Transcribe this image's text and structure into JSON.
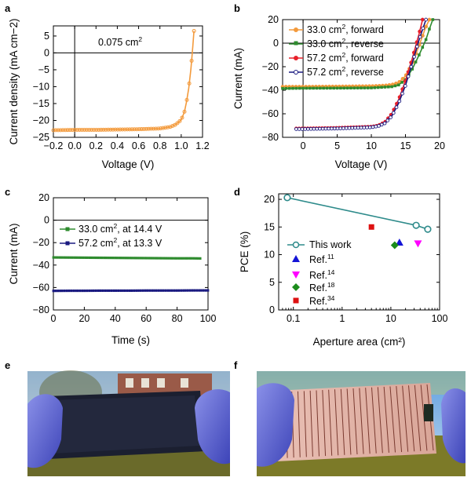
{
  "panels": {
    "a": {
      "letter": "a"
    },
    "b": {
      "letter": "b"
    },
    "c": {
      "letter": "c"
    },
    "d": {
      "letter": "d"
    },
    "e": {
      "letter": "e"
    },
    "f": {
      "letter": "f"
    }
  },
  "colors": {
    "orange": "#F39A3C",
    "green": "#2E8B2E",
    "red": "#E8202A",
    "navy": "#1A1A80",
    "teal": "#2E8B8B",
    "blue": "#1414D6",
    "magenta": "#FF00FF",
    "darkgreen": "#1C8C1C",
    "refred": "#DD1111"
  },
  "chart_data": [
    {
      "id": "a",
      "type": "line",
      "xlabel": "Voltage (V)",
      "ylabel": "Current density (mA cm−2)",
      "xlim": [
        -0.2,
        1.2
      ],
      "ylim": [
        -25,
        8
      ],
      "xticks": [
        "−0.2",
        "0.0",
        "0.2",
        "0.4",
        "0.6",
        "0.8",
        "1.0",
        "1.2"
      ],
      "yticks": [
        "−25",
        "−20",
        "−15",
        "−10",
        "−5",
        "0",
        "5"
      ],
      "annotation": "0.075 cm",
      "annotation_sup": "2",
      "series": [
        {
          "x": [
            -0.2,
            0.0,
            0.2,
            0.4,
            0.6,
            0.8,
            0.9,
            0.95,
            1.0,
            1.03,
            1.05,
            1.07,
            1.09,
            1.1,
            1.11,
            1.12
          ],
          "y": [
            -22.9,
            -22.8,
            -22.8,
            -22.7,
            -22.6,
            -22.4,
            -21.9,
            -21.2,
            -19.8,
            -17.5,
            -14.5,
            -10.5,
            -5.0,
            -1.5,
            2.5,
            6.5
          ]
        }
      ]
    },
    {
      "id": "b",
      "type": "line",
      "xlabel": "Voltage (V)",
      "ylabel": "Current (mA)",
      "xlim": [
        -3,
        20
      ],
      "ylim": [
        -80,
        20
      ],
      "xticks": [
        "0",
        "5",
        "10",
        "15",
        "20"
      ],
      "yticks": [
        "−80",
        "−60",
        "−40",
        "−20",
        "0",
        "20"
      ],
      "series": [
        {
          "name": "33.0 cm",
          "name_sup": "2",
          "name_suffix": ", forward",
          "x": [
            -3,
            0,
            5,
            10,
            12,
            13,
            14,
            15,
            16,
            17,
            18,
            18.5
          ],
          "y": [
            -37,
            -37,
            -36.8,
            -36.5,
            -36,
            -35.3,
            -33.5,
            -28,
            -17,
            -2,
            14,
            20
          ]
        },
        {
          "name": "33.0 cm",
          "name_sup": "2",
          "name_suffix": ", reverse",
          "x": [
            -3,
            0,
            5,
            10,
            13,
            14,
            15,
            16,
            17,
            18,
            18.5,
            19
          ],
          "y": [
            -38.5,
            -38.3,
            -38.2,
            -38,
            -37,
            -35.5,
            -31,
            -22,
            -10,
            3,
            12,
            20
          ]
        },
        {
          "name": "57.2 cm",
          "name_sup": "2",
          "name_suffix": ", forward",
          "x": [
            -1,
            0,
            5,
            10,
            11,
            12,
            13,
            14,
            15,
            16,
            17,
            17.5
          ],
          "y": [
            -72.5,
            -72.5,
            -72,
            -71,
            -70,
            -67,
            -60,
            -48,
            -32,
            -13,
            8,
            20
          ]
        },
        {
          "name": "57.2 cm",
          "name_sup": "2",
          "name_suffix": ", reverse",
          "x": [
            -1,
            0,
            5,
            10,
            11,
            12,
            13,
            14,
            15,
            16,
            17,
            18
          ],
          "y": [
            -73,
            -73,
            -72.5,
            -71.5,
            -70.5,
            -68,
            -62,
            -51,
            -36,
            -17,
            3,
            20
          ]
        }
      ]
    },
    {
      "id": "c",
      "type": "line",
      "xlabel": "Time (s)",
      "ylabel": "Current (mA)",
      "xlim": [
        0,
        100
      ],
      "ylim": [
        -80,
        20
      ],
      "xticks": [
        "0",
        "20",
        "40",
        "60",
        "80",
        "100"
      ],
      "yticks": [
        "−80",
        "−60",
        "−40",
        "−20",
        "0",
        "20"
      ],
      "series": [
        {
          "name": "33.0 cm",
          "name_sup": "2",
          "name_suffix": ", at 14.4 V",
          "x": [
            0,
            10,
            20,
            30,
            40,
            50,
            60,
            70,
            80,
            90,
            95
          ],
          "y": [
            -33.2,
            -33.3,
            -33.4,
            -33.5,
            -33.6,
            -33.7,
            -33.8,
            -33.9,
            -34,
            -34,
            -34.1
          ]
        },
        {
          "name": "57.2 cm",
          "name_sup": "2",
          "name_suffix": ", at 13.3 V",
          "x": [
            0,
            10,
            20,
            30,
            40,
            50,
            60,
            70,
            80,
            90,
            100
          ],
          "y": [
            -63,
            -62.9,
            -62.9,
            -62.8,
            -62.8,
            -62.8,
            -62.7,
            -62.7,
            -62.7,
            -62.6,
            -62.6
          ]
        }
      ]
    },
    {
      "id": "d",
      "type": "scatter",
      "xlabel": "Aperture area (cm²)",
      "ylabel": "PCE (%)",
      "xscale": "log",
      "xlim": [
        0.05,
        100
      ],
      "ylim": [
        0,
        21
      ],
      "xticks": [
        "0.1",
        "1",
        "10",
        "100"
      ],
      "yticks": [
        "0",
        "5",
        "10",
        "15",
        "20"
      ],
      "series": [
        {
          "name": "This work",
          "x": [
            0.075,
            33.0,
            57.2
          ],
          "y": [
            20.3,
            15.3,
            14.6
          ],
          "marker": "circle",
          "line": true
        },
        {
          "name": "Ref.",
          "name_sup": "11",
          "x": [
            15
          ],
          "y": [
            12.2
          ],
          "marker": "triangle-up"
        },
        {
          "name": "Ref.",
          "name_sup": "14",
          "x": [
            36
          ],
          "y": [
            12
          ],
          "marker": "triangle-down"
        },
        {
          "name": "Ref.",
          "name_sup": "18",
          "x": [
            12
          ],
          "y": [
            11.7
          ],
          "marker": "diamond"
        },
        {
          "name": "Ref.",
          "name_sup": "34",
          "x": [
            4
          ],
          "y": [
            15
          ],
          "marker": "square"
        }
      ]
    }
  ],
  "photos": {
    "e": {
      "subject": "dark-module-photo"
    },
    "f": {
      "subject": "copper-module-photo"
    }
  }
}
